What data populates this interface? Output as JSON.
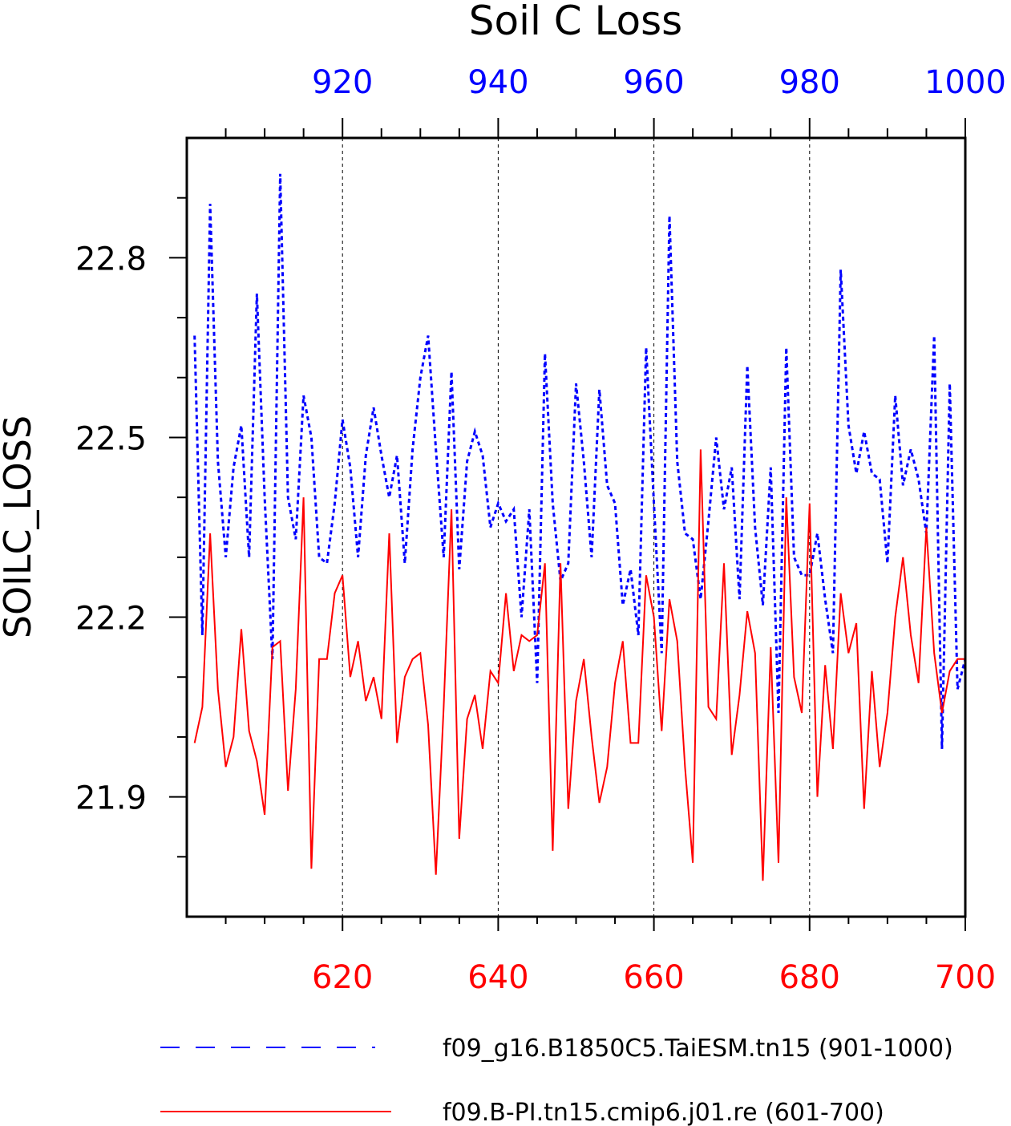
{
  "chart_data": {
    "type": "line",
    "title": "Soil C Loss",
    "ylabel": "SOILC_LOSS",
    "ylim": [
      21.7,
      23.0
    ],
    "y_ticks": [
      "21.9",
      "22.2",
      "22.5",
      "22.8"
    ],
    "grid": "dashed vertical lines at labeled x ticks",
    "legend_position": "bottom",
    "top_axis": {
      "color": "#0000ff",
      "range": [
        900,
        1000
      ],
      "ticks": [
        "920",
        "940",
        "960",
        "980",
        "1000"
      ]
    },
    "bottom_axis": {
      "color": "#ff0000",
      "range": [
        600,
        700
      ],
      "ticks": [
        "620",
        "640",
        "660",
        "680",
        "700"
      ]
    },
    "series": [
      {
        "name": "f09_g16.B1850C5.TaiESM.tn15 (901-1000)",
        "color": "#0000ff",
        "style": "dashed",
        "axis": "top",
        "x": [
          901,
          902,
          903,
          904,
          905,
          906,
          907,
          908,
          909,
          910,
          911,
          912,
          913,
          914,
          915,
          916,
          917,
          918,
          919,
          920,
          921,
          922,
          923,
          924,
          925,
          926,
          927,
          928,
          929,
          930,
          931,
          932,
          933,
          934,
          935,
          936,
          937,
          938,
          939,
          940,
          941,
          942,
          943,
          944,
          945,
          946,
          947,
          948,
          949,
          950,
          951,
          952,
          953,
          954,
          955,
          956,
          957,
          958,
          959,
          960,
          961,
          962,
          963,
          964,
          965,
          966,
          967,
          968,
          969,
          970,
          971,
          972,
          973,
          974,
          975,
          976,
          977,
          978,
          979,
          980,
          981,
          982,
          983,
          984,
          985,
          986,
          987,
          988,
          989,
          990,
          991,
          992,
          993,
          994,
          995,
          996,
          997,
          998,
          999,
          1000
        ],
        "values": [
          22.67,
          22.17,
          22.89,
          22.46,
          22.3,
          22.45,
          22.52,
          22.3,
          22.74,
          22.4,
          22.13,
          22.94,
          22.4,
          22.33,
          22.57,
          22.5,
          22.3,
          22.29,
          22.39,
          22.53,
          22.45,
          22.3,
          22.47,
          22.55,
          22.47,
          22.4,
          22.47,
          22.29,
          22.48,
          22.6,
          22.67,
          22.48,
          22.3,
          22.61,
          22.28,
          22.46,
          22.51,
          22.47,
          22.35,
          22.39,
          22.36,
          22.38,
          22.2,
          22.38,
          22.09,
          22.64,
          22.39,
          22.26,
          22.29,
          22.59,
          22.46,
          22.3,
          22.58,
          22.42,
          22.39,
          22.22,
          22.28,
          22.17,
          22.65,
          22.39,
          22.14,
          22.87,
          22.46,
          22.34,
          22.33,
          22.23,
          22.36,
          22.5,
          22.38,
          22.45,
          22.23,
          22.62,
          22.35,
          22.22,
          22.45,
          22.04,
          22.65,
          22.3,
          22.27,
          22.27,
          22.34,
          22.23,
          22.14,
          22.78,
          22.52,
          22.44,
          22.51,
          22.44,
          22.43,
          22.29,
          22.57,
          22.42,
          22.48,
          22.43,
          22.34,
          22.67,
          21.98,
          22.59,
          22.08,
          22.13
        ]
      },
      {
        "name": "f09.B-PI.tn15.cmip6.j01.re (601-700)",
        "color": "#ff0000",
        "style": "solid",
        "axis": "bottom",
        "x": [
          601,
          602,
          603,
          604,
          605,
          606,
          607,
          608,
          609,
          610,
          611,
          612,
          613,
          614,
          615,
          616,
          617,
          618,
          619,
          620,
          621,
          622,
          623,
          624,
          625,
          626,
          627,
          628,
          629,
          630,
          631,
          632,
          633,
          634,
          635,
          636,
          637,
          638,
          639,
          640,
          641,
          642,
          643,
          644,
          645,
          646,
          647,
          648,
          649,
          650,
          651,
          652,
          653,
          654,
          655,
          656,
          657,
          658,
          659,
          660,
          661,
          662,
          663,
          664,
          665,
          666,
          667,
          668,
          669,
          670,
          671,
          672,
          673,
          674,
          675,
          676,
          677,
          678,
          679,
          680,
          681,
          682,
          683,
          684,
          685,
          686,
          687,
          688,
          689,
          690,
          691,
          692,
          693,
          694,
          695,
          696,
          697,
          698,
          699,
          700
        ],
        "values": [
          21.99,
          22.05,
          22.34,
          22.08,
          21.95,
          22.0,
          22.18,
          22.01,
          21.96,
          21.87,
          22.15,
          22.16,
          21.91,
          22.08,
          22.4,
          21.78,
          22.13,
          22.13,
          22.24,
          22.27,
          22.1,
          22.16,
          22.06,
          22.1,
          22.03,
          22.34,
          21.99,
          22.1,
          22.13,
          22.14,
          22.02,
          21.77,
          22.05,
          22.38,
          21.83,
          22.03,
          22.07,
          21.98,
          22.11,
          22.09,
          22.24,
          22.11,
          22.17,
          22.16,
          22.17,
          22.29,
          21.81,
          22.29,
          21.88,
          22.06,
          22.13,
          22.0,
          21.89,
          21.95,
          22.09,
          22.16,
          21.99,
          21.99,
          22.27,
          22.2,
          22.01,
          22.23,
          22.16,
          21.95,
          21.79,
          22.48,
          22.05,
          22.03,
          22.29,
          21.97,
          22.07,
          22.21,
          22.14,
          21.76,
          22.15,
          21.79,
          22.4,
          22.1,
          22.04,
          22.39,
          21.9,
          22.12,
          21.98,
          22.24,
          22.14,
          22.19,
          21.88,
          22.11,
          21.95,
          22.04,
          22.2,
          22.3,
          22.17,
          22.09,
          22.35,
          22.14,
          22.04,
          22.11,
          22.13,
          22.13
        ]
      }
    ]
  }
}
